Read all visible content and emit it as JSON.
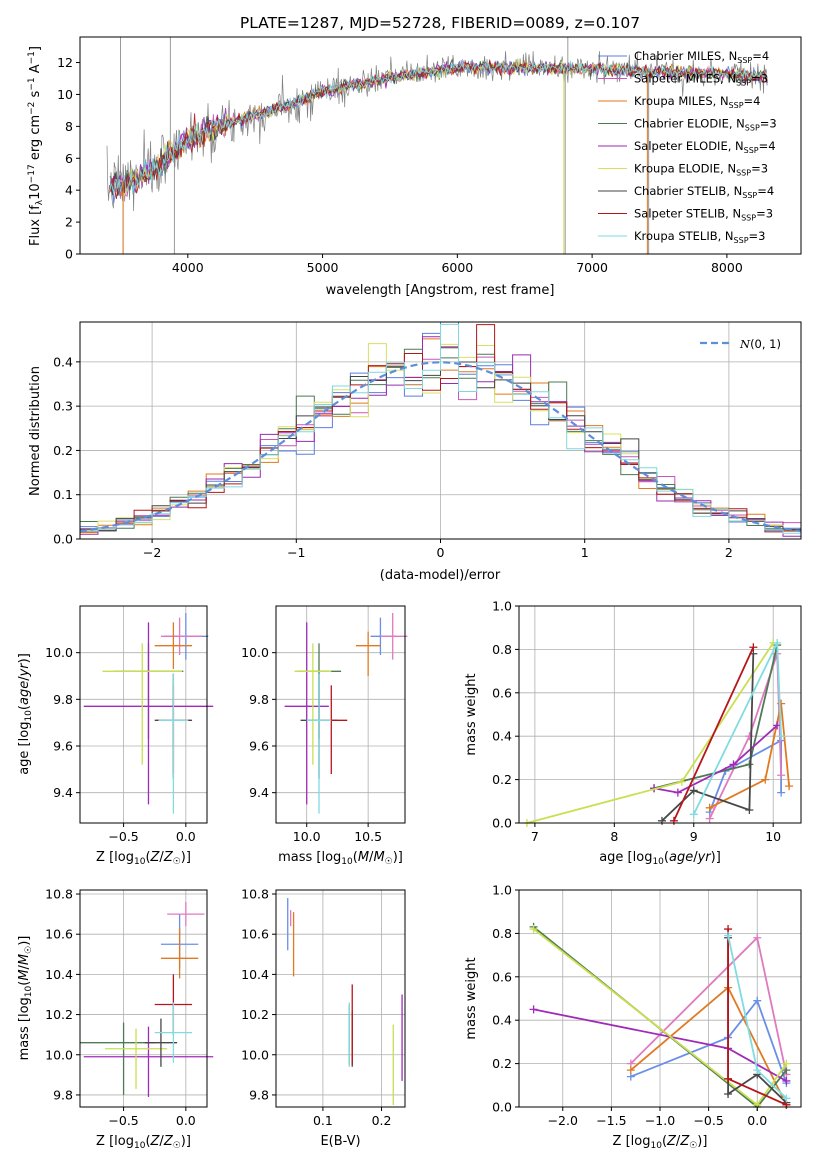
{
  "figure_title": "PLATE=1287, MJD=52728, FIBERID=0089, z=0.107",
  "legend_models": [
    "Chabrier MILES, N_SSP=4",
    "Salpeter MILES, N_SSP=3",
    "Kroupa MILES, N_SSP=4",
    "Chabrier ELODIE, N_SSP=3",
    "Salpeter ELODIE, N_SSP=4",
    "Kroupa ELODIE, N_SSP=3",
    "Chabrier STELIB, N_SSP=4",
    "Salpeter STELIB, N_SSP=3",
    "Kroupa STELIB, N_SSP=3"
  ],
  "legend_model_texts": [
    "Chabrier MILES, N",
    "Salpeter MILES, N",
    "Kroupa MILES, N",
    "Chabrier ELODIE, N",
    "Salpeter ELODIE, N",
    "Kroupa ELODIE, N",
    "Chabrier STELIB, N",
    "Salpeter STELIB, N",
    "Kroupa STELIB, N"
  ],
  "legend_nssp_sub": "SSP",
  "legend_nssp_vals": [
    "=4",
    "=3",
    "=4",
    "=3",
    "=4",
    "=3",
    "=4",
    "=3",
    "=3"
  ],
  "colors": {
    "model_lines": [
      "#5b7fe0",
      "#cc55bb",
      "#e0781e",
      "#4a7a52",
      "#9a2bb0",
      "#d8e060",
      "#444444",
      "#b01818",
      "#7fd8e0"
    ],
    "errbar_colors": [
      "#6a8fe8",
      "#e07ac0",
      "#e07a22",
      "#4f7a55",
      "#a02bb8",
      "#c8e050",
      "#484848",
      "#b8141c",
      "#80dce0"
    ],
    "data_spectrum": "#808080",
    "normal_curve": "#5b8fd8"
  },
  "chart_data": [
    {
      "id": "spectrum",
      "type": "line",
      "title": "PLATE=1287, MJD=52728, FIBERID=0089, z=0.107",
      "xlabel": "wavelength [Angstrom, rest frame]",
      "ylabel": "Flux [f_λ 10^-17 erg cm^-2 s^-1 A^-1]",
      "xlim": [
        3200,
        8550
      ],
      "ylim": [
        0,
        13.6
      ],
      "xticks": [
        4000,
        5000,
        6000,
        7000,
        8000
      ],
      "yticks": [
        0,
        2,
        4,
        6,
        8,
        10,
        12
      ],
      "grid": false,
      "legend_position": "right",
      "continuum_knots": {
        "x": [
          3400,
          3600,
          3800,
          4000,
          4200,
          4500,
          4800,
          5000,
          5300,
          5600,
          6000,
          6500,
          7000,
          7500,
          8000,
          8300
        ],
        "y": [
          4.2,
          4.6,
          5.6,
          7.2,
          7.9,
          8.7,
          9.5,
          10.2,
          10.7,
          11.2,
          11.7,
          11.7,
          11.6,
          11.4,
          11.3,
          11.1
        ]
      }
    },
    {
      "id": "residuals",
      "type": "bar",
      "xlabel": "(data-model)/error",
      "ylabel": "Normed distribution",
      "xlim": [
        -2.5,
        2.5
      ],
      "ylim": [
        0,
        0.49
      ],
      "xticks": [
        -2,
        -1,
        0,
        1,
        2
      ],
      "yticks": [
        0.0,
        0.1,
        0.2,
        0.3,
        0.4
      ],
      "grid": true,
      "legend_position": "top-right",
      "legend": [
        "N(0,1)"
      ],
      "legend_text_main": "N",
      "legend_text_rest": "(0, 1)",
      "bins": [
        -2.5,
        2.5,
        40
      ],
      "normal_curve": {
        "mu": 0,
        "sigma": 1
      }
    },
    {
      "id": "age-vs-z",
      "type": "scatter",
      "xlabel": "Z [log10(Z/Z☉)]",
      "ylabel": "age [log10(age/yr)]",
      "xlim": [
        -0.85,
        0.17
      ],
      "ylim": [
        9.27,
        10.2
      ],
      "xticks": [
        -0.5,
        0.0
      ],
      "yticks": [
        9.4,
        9.6,
        9.8,
        10.0
      ],
      "grid": true,
      "points": [
        {
          "x": 0.0,
          "y": 10.07,
          "xerr": [
            0.18,
            0.18
          ],
          "yerr": [
            0.1,
            0.1
          ]
        },
        {
          "x": -0.05,
          "y": 10.07,
          "xerr": [
            0.15,
            0.18
          ],
          "yerr": [
            0.08,
            0.08
          ]
        },
        {
          "x": -0.1,
          "y": 10.03,
          "xerr": [
            0.15,
            0.15
          ],
          "yerr": [
            0.1,
            0.1
          ]
        },
        {
          "x": -0.3,
          "y": 9.92,
          "xerr": [
            0.28,
            0.28
          ],
          "yerr": [
            0.29,
            0.12
          ]
        },
        {
          "x": -0.3,
          "y": 9.77,
          "xerr": [
            0.52,
            0.52
          ],
          "yerr": [
            0.42,
            0.36
          ]
        },
        {
          "x": -0.35,
          "y": 9.92,
          "xerr": [
            0.32,
            0.32
          ],
          "yerr": [
            0.4,
            0.12
          ]
        },
        {
          "x": -0.1,
          "y": 9.71,
          "xerr": [
            0.15,
            0.15
          ],
          "yerr": [
            0.25,
            0.2
          ]
        },
        {
          "x": -0.1,
          "y": 9.71,
          "xerr": [
            0.13,
            0.13
          ],
          "yerr": [
            0.23,
            0.15
          ]
        },
        {
          "x": -0.1,
          "y": 9.71,
          "xerr": [
            0.12,
            0.12
          ],
          "yerr": [
            0.4,
            0.2
          ]
        }
      ]
    },
    {
      "id": "age-vs-mass",
      "type": "scatter",
      "xlabel": "mass [log10(M/M☉)]",
      "ylabel": "",
      "xlim": [
        9.75,
        10.8
      ],
      "ylim": [
        9.27,
        10.2
      ],
      "xticks": [
        10.0,
        10.5
      ],
      "yticks": [
        9.4,
        9.6,
        9.8,
        10.0
      ],
      "grid": true,
      "points": [
        {
          "x": 10.6,
          "y": 10.07,
          "xerr": [
            0.08,
            0.13
          ],
          "yerr": [
            0.08,
            0.08
          ]
        },
        {
          "x": 10.7,
          "y": 10.07,
          "xerr": [
            0.1,
            0.12
          ],
          "yerr": [
            0.1,
            0.1
          ]
        },
        {
          "x": 10.5,
          "y": 10.03,
          "xerr": [
            0.1,
            0.1
          ],
          "yerr": [
            0.13,
            0.06
          ]
        },
        {
          "x": 10.1,
          "y": 9.92,
          "xerr": [
            0.18,
            0.18
          ],
          "yerr": [
            0.29,
            0.12
          ]
        },
        {
          "x": 10.0,
          "y": 9.77,
          "xerr": [
            0.18,
            0.18
          ],
          "yerr": [
            0.42,
            0.36
          ]
        },
        {
          "x": 10.05,
          "y": 9.92,
          "xerr": [
            0.15,
            0.15
          ],
          "yerr": [
            0.4,
            0.12
          ]
        },
        {
          "x": 10.1,
          "y": 9.71,
          "xerr": [
            0.15,
            0.15
          ],
          "yerr": [
            0.25,
            0.2
          ]
        },
        {
          "x": 10.2,
          "y": 9.71,
          "xerr": [
            0.13,
            0.13
          ],
          "yerr": [
            0.23,
            0.15
          ]
        },
        {
          "x": 10.1,
          "y": 9.71,
          "xerr": [
            0.1,
            0.1
          ],
          "yerr": [
            0.4,
            0.2
          ]
        }
      ]
    },
    {
      "id": "weight-vs-age",
      "type": "line",
      "xlabel": "age [log10(age/yr)]",
      "ylabel": "mass weight",
      "xlim": [
        6.8,
        10.35
      ],
      "ylim": [
        0,
        1.0
      ],
      "xticks": [
        7,
        8,
        9,
        10
      ],
      "yticks": [
        0.0,
        0.2,
        0.4,
        0.6,
        0.8,
        1.0
      ],
      "grid": true,
      "series": [
        {
          "points": [
            [
              9.2,
              0.05
            ],
            [
              9.4,
              0.24
            ],
            [
              10.1,
              0.38
            ],
            [
              10.1,
              0.14
            ]
          ]
        },
        {
          "points": [
            [
              9.2,
              0.02
            ],
            [
              9.7,
              0.4
            ],
            [
              10.05,
              0.78
            ],
            [
              10.1,
              0.22
            ]
          ]
        },
        {
          "points": [
            [
              9.2,
              0.07
            ],
            [
              9.9,
              0.2
            ],
            [
              10.1,
              0.55
            ],
            [
              10.2,
              0.17
            ]
          ]
        },
        {
          "points": [
            [
              8.5,
              0.16
            ],
            [
              9.7,
              0.27
            ],
            [
              10.05,
              0.82
            ]
          ]
        },
        {
          "points": [
            [
              8.5,
              0.16
            ],
            [
              8.8,
              0.14
            ],
            [
              9.5,
              0.27
            ],
            [
              10.05,
              0.45
            ]
          ]
        },
        {
          "points": [
            [
              6.9,
              0.0
            ],
            [
              8.85,
              0.19
            ],
            [
              10.0,
              0.83
            ]
          ]
        },
        {
          "points": [
            [
              8.6,
              0.01
            ],
            [
              9.0,
              0.15
            ],
            [
              9.7,
              0.06
            ],
            [
              9.75,
              0.78
            ]
          ]
        },
        {
          "points": [
            [
              8.75,
              0.01
            ],
            [
              9.75,
              0.81
            ]
          ]
        },
        {
          "points": [
            [
              9.0,
              0.04
            ],
            [
              10.05,
              0.83
            ],
            [
              10.1,
              0.4
            ]
          ]
        }
      ]
    },
    {
      "id": "mass-vs-z",
      "type": "scatter",
      "xlabel": "Z [log10(Z/Z☉)]",
      "ylabel": "mass [log10(M/M☉)]",
      "xlim": [
        -0.85,
        0.17
      ],
      "ylim": [
        9.74,
        10.82
      ],
      "xticks": [
        -0.5,
        0.0
      ],
      "yticks": [
        9.8,
        10.0,
        10.2,
        10.4,
        10.6,
        10.8
      ],
      "grid": true,
      "points": [
        {
          "x": -0.05,
          "y": 10.55,
          "xerr": [
            0.15,
            0.15
          ],
          "yerr": [
            0.12,
            0.15
          ]
        },
        {
          "x": 0.0,
          "y": 10.7,
          "xerr": [
            0.15,
            0.15
          ],
          "yerr": [
            0.06,
            0.06
          ]
        },
        {
          "x": -0.05,
          "y": 10.48,
          "xerr": [
            0.15,
            0.15
          ],
          "yerr": [
            0.1,
            0.15
          ]
        },
        {
          "x": -0.5,
          "y": 10.06,
          "xerr": [
            0.35,
            0.25
          ],
          "yerr": [
            0.26,
            0.1
          ]
        },
        {
          "x": -0.3,
          "y": 9.99,
          "xerr": [
            0.52,
            0.52
          ],
          "yerr": [
            0.2,
            0.15
          ]
        },
        {
          "x": -0.4,
          "y": 10.03,
          "xerr": [
            0.25,
            0.25
          ],
          "yerr": [
            0.2,
            0.1
          ]
        },
        {
          "x": -0.2,
          "y": 10.06,
          "xerr": [
            0.13,
            0.13
          ],
          "yerr": [
            0.12,
            0.12
          ]
        },
        {
          "x": -0.1,
          "y": 10.25,
          "xerr": [
            0.15,
            0.15
          ],
          "yerr": [
            0.15,
            0.15
          ]
        },
        {
          "x": -0.1,
          "y": 10.11,
          "xerr": [
            0.15,
            0.15
          ],
          "yerr": [
            0.15,
            0.15
          ]
        }
      ]
    },
    {
      "id": "mass-vs-ebv",
      "type": "scatter",
      "xlabel": "E(B-V)",
      "ylabel": "",
      "xlim": [
        0.02,
        0.24
      ],
      "ylim": [
        9.74,
        10.82
      ],
      "xticks": [
        0.1,
        0.2
      ],
      "yticks": [
        9.8,
        10.0,
        10.2,
        10.4,
        10.6,
        10.8
      ],
      "grid": true,
      "points": [
        {
          "x": 0.04,
          "y": 10.6,
          "yerr": [
            0.08,
            0.18
          ]
        },
        {
          "x": 0.045,
          "y": 10.68,
          "yerr": [
            0.04,
            0.04
          ]
        },
        {
          "x": 0.05,
          "y": 10.55,
          "yerr": [
            0.16,
            0.16
          ]
        },
        {
          "x": 0.145,
          "y": 10.1,
          "yerr": [
            0.15,
            0.15
          ]
        },
        {
          "x": 0.235,
          "y": 10.15,
          "yerr": [
            0.28,
            0.15
          ]
        },
        {
          "x": 0.22,
          "y": 10.0,
          "yerr": [
            0.25,
            0.15
          ]
        },
        {
          "x": 0.15,
          "y": 10.08,
          "yerr": [
            0.14,
            0.14
          ]
        },
        {
          "x": 0.15,
          "y": 10.15,
          "yerr": [
            0.2,
            0.2
          ]
        },
        {
          "x": 0.145,
          "y": 10.1,
          "yerr": [
            0.16,
            0.16
          ]
        }
      ]
    },
    {
      "id": "weight-vs-z",
      "type": "line",
      "xlabel": "Z [log10(Z/Z☉)]",
      "ylabel": "mass weight",
      "xlim": [
        -2.45,
        0.45
      ],
      "ylim": [
        0,
        1.0
      ],
      "xticks": [
        -2.0,
        -1.5,
        -1.0,
        -0.5,
        0.0
      ],
      "yticks": [
        0.0,
        0.2,
        0.4,
        0.6,
        0.8,
        1.0
      ],
      "grid": true,
      "series": [
        {
          "points": [
            [
              -1.3,
              0.14
            ],
            [
              -0.3,
              0.32
            ],
            [
              0.0,
              0.49
            ],
            [
              0.3,
              0.11
            ]
          ]
        },
        {
          "points": [
            [
              -1.3,
              0.2
            ],
            [
              0.0,
              0.78
            ],
            [
              0.3,
              0.15
            ]
          ]
        },
        {
          "points": [
            [
              -1.3,
              0.17
            ],
            [
              -0.3,
              0.55
            ],
            [
              0.3,
              0.01
            ]
          ]
        },
        {
          "points": [
            [
              -2.3,
              0.83
            ],
            [
              0.0,
              0.0
            ],
            [
              0.3,
              0.17
            ]
          ]
        },
        {
          "points": [
            [
              -2.3,
              0.45
            ],
            [
              -0.3,
              0.27
            ],
            [
              0.3,
              0.12
            ]
          ]
        },
        {
          "points": [
            [
              -2.3,
              0.82
            ],
            [
              0.0,
              0.01
            ],
            [
              0.3,
              0.2
            ]
          ]
        },
        {
          "points": [
            [
              -0.3,
              0.78
            ],
            [
              -0.3,
              0.06
            ],
            [
              0.0,
              0.15
            ],
            [
              0.3,
              0.02
            ]
          ]
        },
        {
          "points": [
            [
              -0.3,
              0.82
            ],
            [
              -0.3,
              0.13
            ],
            [
              0.3,
              0.01
            ]
          ]
        },
        {
          "points": [
            [
              -0.3,
              0.79
            ],
            [
              0.0,
              0.17
            ],
            [
              0.3,
              0.04
            ]
          ]
        }
      ]
    }
  ]
}
